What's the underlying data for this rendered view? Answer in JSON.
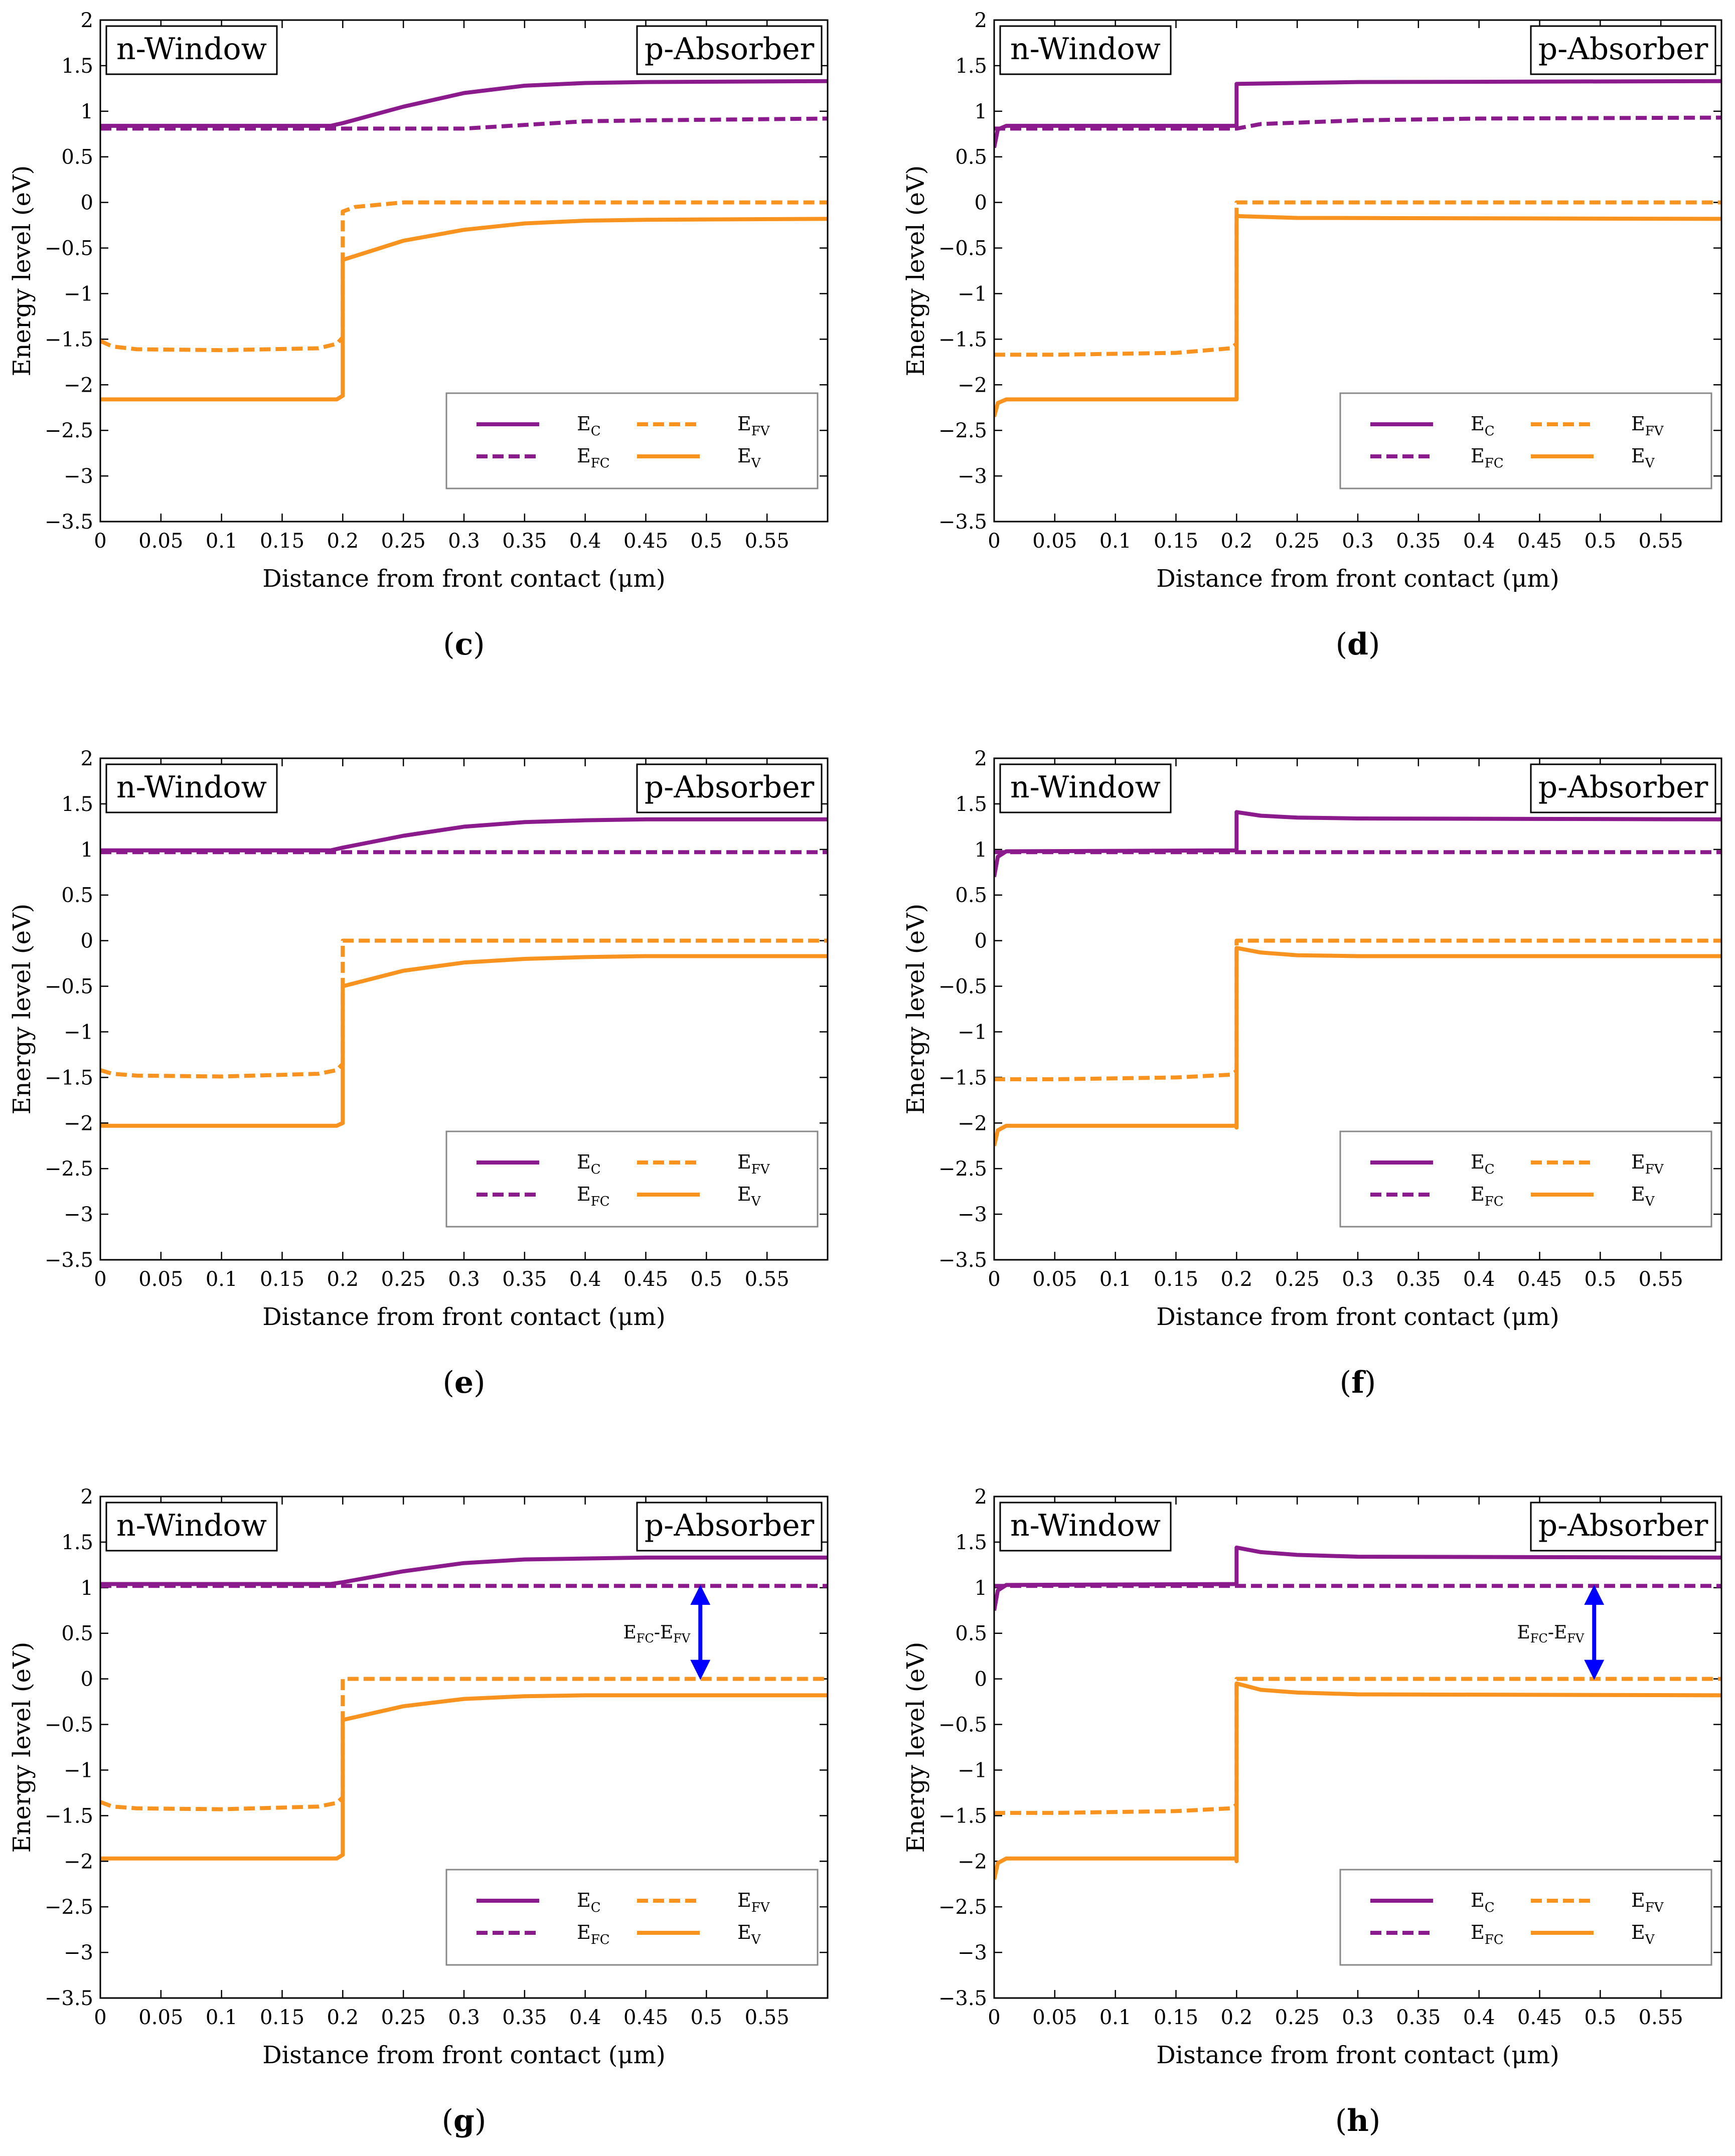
{
  "figure": {
    "region_left": "n-Window",
    "region_right": "p-Absorber",
    "xlabel": "Distance from front contact (μm)",
    "ylabel": "Energy level (eV)",
    "colors": {
      "conduction": "#8B1A8C",
      "valence": "#F7931E",
      "arrow": "#0000FF",
      "frame": "#000000"
    },
    "legend": [
      {
        "key": "Ec",
        "main": "E",
        "sub": "C",
        "series_color": "conduction",
        "dash": "solid"
      },
      {
        "key": "Efc",
        "main": "E",
        "sub": "FC",
        "series_color": "conduction",
        "dash": "dashed"
      },
      {
        "key": "Efv",
        "main": "E",
        "sub": "FV",
        "series_color": "valence",
        "dash": "dashed"
      },
      {
        "key": "Ev",
        "main": "E",
        "sub": "V",
        "series_color": "valence",
        "dash": "solid"
      }
    ]
  },
  "chart_data": [
    {
      "type": "line",
      "panel": "c",
      "caption_open": "(",
      "caption_letter": "c",
      "caption_close": ")",
      "title": "",
      "xlabel": "Distance from front contact (μm)",
      "ylabel": "Energy level (eV)",
      "xlim": [
        0,
        0.6
      ],
      "ylim": [
        -3.5,
        2
      ],
      "xticks": [
        0,
        0.05,
        0.1,
        0.15,
        0.2,
        0.25,
        0.3,
        0.35,
        0.4,
        0.45,
        0.5,
        0.55
      ],
      "xtick_labels": [
        "0",
        "0.05",
        "0.1",
        "0.15",
        "0.2",
        "0.25",
        "0.3",
        "0.35",
        "0.4",
        "0.45",
        "0.5",
        "0.55"
      ],
      "yticks": [
        2,
        1.5,
        1,
        0.5,
        0,
        -0.5,
        -1,
        -1.5,
        -2,
        -2.5,
        -3,
        -3.5
      ],
      "ytick_labels": [
        "2",
        "1.5",
        "1",
        "0.5",
        "0",
        "−0.5",
        "−1",
        "−1.5",
        "−2",
        "−2.5",
        "−3",
        "−3.5"
      ],
      "legend_position": "lower-right",
      "series": [
        {
          "name": "Ec",
          "x": [
            0,
            0.19,
            0.2,
            0.25,
            0.3,
            0.35,
            0.4,
            0.45,
            0.6
          ],
          "y": [
            0.84,
            0.84,
            0.87,
            1.05,
            1.2,
            1.28,
            1.31,
            1.32,
            1.33
          ]
        },
        {
          "name": "Efc",
          "x": [
            0,
            0.3,
            0.35,
            0.4,
            0.45,
            0.6
          ],
          "y": [
            0.81,
            0.81,
            0.85,
            0.89,
            0.9,
            0.92
          ]
        },
        {
          "name": "Efv",
          "x": [
            0,
            0.01,
            0.03,
            0.1,
            0.18,
            0.195,
            0.2,
            0.2,
            0.21,
            0.25,
            0.6
          ],
          "y": [
            -1.52,
            -1.58,
            -1.61,
            -1.62,
            -1.6,
            -1.55,
            -1.48,
            -0.1,
            -0.05,
            0,
            0
          ]
        },
        {
          "name": "Ev",
          "x": [
            0,
            0.195,
            0.2,
            0.2,
            0.25,
            0.3,
            0.35,
            0.4,
            0.45,
            0.6
          ],
          "y": [
            -2.16,
            -2.16,
            -2.12,
            -0.63,
            -0.42,
            -0.3,
            -0.23,
            -0.2,
            -0.19,
            -0.18
          ]
        }
      ],
      "annotation": null
    },
    {
      "type": "line",
      "panel": "d",
      "caption_open": "(",
      "caption_letter": "d",
      "caption_close": ")",
      "title": "",
      "xlabel": "Distance from front contact (μm)",
      "ylabel": "Energy level (eV)",
      "xlim": [
        0,
        0.6
      ],
      "ylim": [
        -3.5,
        2
      ],
      "xticks": [
        0,
        0.05,
        0.1,
        0.15,
        0.2,
        0.25,
        0.3,
        0.35,
        0.4,
        0.45,
        0.5,
        0.55
      ],
      "xtick_labels": [
        "0",
        "0.05",
        "0.1",
        "0.15",
        "0.2",
        "0.25",
        "0.3",
        "0.35",
        "0.4",
        "0.45",
        "0.5",
        "0.55"
      ],
      "yticks": [
        2,
        1.5,
        1,
        0.5,
        0,
        -0.5,
        -1,
        -1.5,
        -2,
        -2.5,
        -3,
        -3.5
      ],
      "ytick_labels": [
        "2",
        "1.5",
        "1",
        "0.5",
        "0",
        "−0.5",
        "−1",
        "−1.5",
        "−2",
        "−2.5",
        "−3",
        "−3.5"
      ],
      "legend_position": "lower-right",
      "series": [
        {
          "name": "Ec",
          "x": [
            0,
            0.003,
            0.01,
            0.199,
            0.2,
            0.2,
            0.3,
            0.6
          ],
          "y": [
            0.6,
            0.8,
            0.84,
            0.84,
            0.84,
            1.3,
            1.32,
            1.33
          ]
        },
        {
          "name": "Efc",
          "x": [
            0,
            0.2,
            0.22,
            0.3,
            0.4,
            0.6
          ],
          "y": [
            0.81,
            0.81,
            0.86,
            0.9,
            0.92,
            0.93
          ]
        },
        {
          "name": "Efv",
          "x": [
            0,
            0.05,
            0.15,
            0.195,
            0.2,
            0.2,
            0.6
          ],
          "y": [
            -1.67,
            -1.67,
            -1.65,
            -1.6,
            -1.55,
            0,
            0
          ]
        },
        {
          "name": "Ev",
          "x": [
            0,
            0.003,
            0.01,
            0.2,
            0.2,
            0.2,
            0.25,
            0.6
          ],
          "y": [
            -2.35,
            -2.2,
            -2.16,
            -2.16,
            -2.14,
            -0.15,
            -0.17,
            -0.18
          ]
        }
      ],
      "annotation": null
    },
    {
      "type": "line",
      "panel": "e",
      "caption_open": "(",
      "caption_letter": "e",
      "caption_close": ")",
      "title": "",
      "xlabel": "Distance from front contact (μm)",
      "ylabel": "Energy level (eV)",
      "xlim": [
        0,
        0.6
      ],
      "ylim": [
        -3.5,
        2
      ],
      "xticks": [
        0,
        0.05,
        0.1,
        0.15,
        0.2,
        0.25,
        0.3,
        0.35,
        0.4,
        0.45,
        0.5,
        0.55
      ],
      "xtick_labels": [
        "0",
        "0.05",
        "0.1",
        "0.15",
        "0.2",
        "0.25",
        "0.3",
        "0.35",
        "0.4",
        "0.45",
        "0.5",
        "0.55"
      ],
      "yticks": [
        2,
        1.5,
        1,
        0.5,
        0,
        -0.5,
        -1,
        -1.5,
        -2,
        -2.5,
        -3,
        -3.5
      ],
      "ytick_labels": [
        "2",
        "1.5",
        "1",
        "0.5",
        "0",
        "−0.5",
        "−1",
        "−1.5",
        "−2",
        "−2.5",
        "−3",
        "−3.5"
      ],
      "legend_position": "lower-right",
      "series": [
        {
          "name": "Ec",
          "x": [
            0,
            0.19,
            0.2,
            0.25,
            0.3,
            0.35,
            0.4,
            0.45,
            0.6
          ],
          "y": [
            0.99,
            0.99,
            1.02,
            1.15,
            1.25,
            1.3,
            1.32,
            1.33,
            1.33
          ]
        },
        {
          "name": "Efc",
          "x": [
            0,
            0.6
          ],
          "y": [
            0.97,
            0.97
          ]
        },
        {
          "name": "Efv",
          "x": [
            0,
            0.01,
            0.03,
            0.1,
            0.18,
            0.195,
            0.2,
            0.2,
            0.6
          ],
          "y": [
            -1.42,
            -1.46,
            -1.48,
            -1.49,
            -1.46,
            -1.42,
            -1.35,
            0,
            0
          ]
        },
        {
          "name": "Ev",
          "x": [
            0,
            0.195,
            0.2,
            0.2,
            0.25,
            0.3,
            0.35,
            0.4,
            0.45,
            0.6
          ],
          "y": [
            -2.03,
            -2.03,
            -2.0,
            -0.5,
            -0.33,
            -0.24,
            -0.2,
            -0.18,
            -0.17,
            -0.17
          ]
        }
      ],
      "annotation": null
    },
    {
      "type": "line",
      "panel": "f",
      "caption_open": "(",
      "caption_letter": "f",
      "caption_close": ")",
      "title": "",
      "xlabel": "Distance from front contact (μm)",
      "ylabel": "Energy level (eV)",
      "xlim": [
        0,
        0.6
      ],
      "ylim": [
        -3.5,
        2
      ],
      "xticks": [
        0,
        0.05,
        0.1,
        0.15,
        0.2,
        0.25,
        0.3,
        0.35,
        0.4,
        0.45,
        0.5,
        0.55
      ],
      "xtick_labels": [
        "0",
        "0.05",
        "0.1",
        "0.15",
        "0.2",
        "0.25",
        "0.3",
        "0.35",
        "0.4",
        "0.45",
        "0.5",
        "0.55"
      ],
      "yticks": [
        2,
        1.5,
        1,
        0.5,
        0,
        -0.5,
        -1,
        -1.5,
        -2,
        -2.5,
        -3,
        -3.5
      ],
      "ytick_labels": [
        "2",
        "1.5",
        "1",
        "0.5",
        "0",
        "−0.5",
        "−1",
        "−1.5",
        "−2",
        "−2.5",
        "−3",
        "−3.5"
      ],
      "legend_position": "lower-right",
      "series": [
        {
          "name": "Ec",
          "x": [
            0,
            0.003,
            0.01,
            0.199,
            0.2,
            0.2,
            0.22,
            0.25,
            0.3,
            0.6
          ],
          "y": [
            0.7,
            0.92,
            0.98,
            0.99,
            0.99,
            1.41,
            1.37,
            1.35,
            1.34,
            1.33
          ]
        },
        {
          "name": "Efc",
          "x": [
            0,
            0.6
          ],
          "y": [
            0.97,
            0.97
          ]
        },
        {
          "name": "Efv",
          "x": [
            0,
            0.05,
            0.15,
            0.195,
            0.2,
            0.2,
            0.6
          ],
          "y": [
            -1.52,
            -1.52,
            -1.5,
            -1.47,
            -1.43,
            0,
            0
          ]
        },
        {
          "name": "Ev",
          "x": [
            0,
            0.003,
            0.01,
            0.2,
            0.2,
            0.2,
            0.22,
            0.25,
            0.3,
            0.6
          ],
          "y": [
            -2.25,
            -2.08,
            -2.03,
            -2.03,
            -2.05,
            -0.08,
            -0.13,
            -0.16,
            -0.17,
            -0.17
          ]
        }
      ],
      "annotation": null
    },
    {
      "type": "line",
      "panel": "g",
      "caption_open": "(",
      "caption_letter": "g",
      "caption_close": ")",
      "title": "",
      "xlabel": "Distance from front contact (μm)",
      "ylabel": "Energy level (eV)",
      "xlim": [
        0,
        0.6
      ],
      "ylim": [
        -3.5,
        2
      ],
      "xticks": [
        0,
        0.05,
        0.1,
        0.15,
        0.2,
        0.25,
        0.3,
        0.35,
        0.4,
        0.45,
        0.5,
        0.55
      ],
      "xtick_labels": [
        "0",
        "0.05",
        "0.1",
        "0.15",
        "0.2",
        "0.25",
        "0.3",
        "0.35",
        "0.4",
        "0.45",
        "0.5",
        "0.55"
      ],
      "yticks": [
        2,
        1.5,
        1,
        0.5,
        0,
        -0.5,
        -1,
        -1.5,
        -2,
        -2.5,
        -3,
        -3.5
      ],
      "ytick_labels": [
        "2",
        "1.5",
        "1",
        "0.5",
        "0",
        "−0.5",
        "−1",
        "−1.5",
        "−2",
        "−2.5",
        "−3",
        "−3.5"
      ],
      "legend_position": "lower-right",
      "series": [
        {
          "name": "Ec",
          "x": [
            0,
            0.19,
            0.2,
            0.25,
            0.3,
            0.35,
            0.4,
            0.45,
            0.6
          ],
          "y": [
            1.04,
            1.04,
            1.06,
            1.18,
            1.27,
            1.31,
            1.32,
            1.33,
            1.33
          ]
        },
        {
          "name": "Efc",
          "x": [
            0,
            0.6
          ],
          "y": [
            1.02,
            1.02
          ]
        },
        {
          "name": "Efv",
          "x": [
            0,
            0.01,
            0.03,
            0.1,
            0.18,
            0.195,
            0.2,
            0.2,
            0.6
          ],
          "y": [
            -1.35,
            -1.4,
            -1.42,
            -1.43,
            -1.4,
            -1.36,
            -1.3,
            0,
            0
          ]
        },
        {
          "name": "Ev",
          "x": [
            0,
            0.195,
            0.2,
            0.2,
            0.25,
            0.3,
            0.35,
            0.4,
            0.45,
            0.6
          ],
          "y": [
            -1.97,
            -1.97,
            -1.93,
            -0.45,
            -0.3,
            -0.22,
            -0.19,
            -0.18,
            -0.18,
            -0.18
          ]
        }
      ],
      "annotation": {
        "label_main_1": "E",
        "label_sub_1": "FC",
        "label_dash": "-",
        "label_main_2": "E",
        "label_sub_2": "FV",
        "x": 0.495,
        "y_top": 1.02,
        "y_bottom": 0
      }
    },
    {
      "type": "line",
      "panel": "h",
      "caption_open": "(",
      "caption_letter": "h",
      "caption_close": ")",
      "title": "",
      "xlabel": "Distance from front contact (μm)",
      "ylabel": "Energy level (eV)",
      "xlim": [
        0,
        0.6
      ],
      "ylim": [
        -3.5,
        2
      ],
      "xticks": [
        0,
        0.05,
        0.1,
        0.15,
        0.2,
        0.25,
        0.3,
        0.35,
        0.4,
        0.45,
        0.5,
        0.55
      ],
      "xtick_labels": [
        "0",
        "0.05",
        "0.1",
        "0.15",
        "0.2",
        "0.25",
        "0.3",
        "0.35",
        "0.4",
        "0.45",
        "0.5",
        "0.55"
      ],
      "yticks": [
        2,
        1.5,
        1,
        0.5,
        0,
        -0.5,
        -1,
        -1.5,
        -2,
        -2.5,
        -3,
        -3.5
      ],
      "ytick_labels": [
        "2",
        "1.5",
        "1",
        "0.5",
        "0",
        "−0.5",
        "−1",
        "−1.5",
        "−2",
        "−2.5",
        "−3",
        "−3.5"
      ],
      "legend_position": "lower-right",
      "series": [
        {
          "name": "Ec",
          "x": [
            0,
            0.003,
            0.01,
            0.199,
            0.2,
            0.2,
            0.22,
            0.25,
            0.3,
            0.6
          ],
          "y": [
            0.75,
            0.97,
            1.03,
            1.04,
            1.04,
            1.44,
            1.39,
            1.36,
            1.34,
            1.33
          ]
        },
        {
          "name": "Efc",
          "x": [
            0,
            0.6
          ],
          "y": [
            1.02,
            1.02
          ]
        },
        {
          "name": "Efv",
          "x": [
            0,
            0.05,
            0.15,
            0.195,
            0.2,
            0.2,
            0.6
          ],
          "y": [
            -1.47,
            -1.47,
            -1.45,
            -1.42,
            -1.38,
            0,
            0
          ]
        },
        {
          "name": "Ev",
          "x": [
            0,
            0.003,
            0.01,
            0.2,
            0.2,
            0.2,
            0.22,
            0.25,
            0.3,
            0.6
          ],
          "y": [
            -2.2,
            -2.02,
            -1.97,
            -1.97,
            -2.0,
            -0.05,
            -0.12,
            -0.15,
            -0.17,
            -0.18
          ]
        }
      ],
      "annotation": {
        "label_main_1": "E",
        "label_sub_1": "FC",
        "label_dash": "-",
        "label_main_2": "E",
        "label_sub_2": "FV",
        "x": 0.495,
        "y_top": 1.02,
        "y_bottom": 0
      }
    }
  ]
}
